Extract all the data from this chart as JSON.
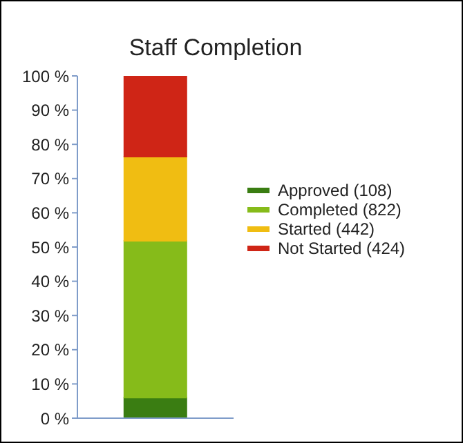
{
  "chart_data": {
    "type": "bar",
    "title": "Staff Completion",
    "categories": [
      null
    ],
    "stacked": true,
    "series": [
      {
        "name": "Approved (108)",
        "color": "#3a7d12",
        "values": [
          6.0
        ]
      },
      {
        "name": "Completed (822)",
        "color": "#86bb1a",
        "values": [
          45.8
        ]
      },
      {
        "name": "Started (442)",
        "color": "#f0bd12",
        "values": [
          24.6
        ]
      },
      {
        "name": "Not Started (424)",
        "color": "#cf2516",
        "values": [
          23.6
        ]
      }
    ],
    "ylim": [
      0,
      100
    ],
    "yticks": [
      {
        "value": 0,
        "label": "0 %"
      },
      {
        "value": 10,
        "label": "10 %"
      },
      {
        "value": 20,
        "label": "20 %"
      },
      {
        "value": 30,
        "label": "30 %"
      },
      {
        "value": 40,
        "label": "40 %"
      },
      {
        "value": 50,
        "label": "50 %"
      },
      {
        "value": 60,
        "label": "60 %"
      },
      {
        "value": 70,
        "label": "70 %"
      },
      {
        "value": 80,
        "label": "80 %"
      },
      {
        "value": 90,
        "label": "90 %"
      },
      {
        "value": 100,
        "label": "100 %"
      }
    ],
    "grid": false,
    "legend": "right"
  }
}
